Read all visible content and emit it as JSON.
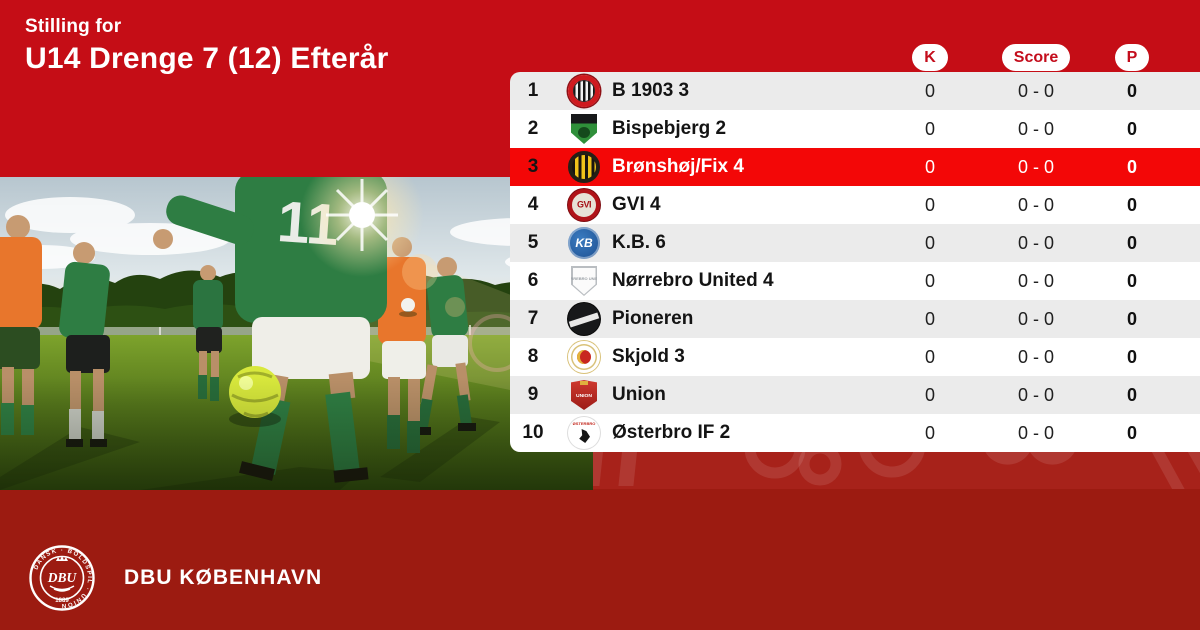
{
  "header": {
    "eyebrow": "Stilling for",
    "title": "U14 Drenge 7 (12) Efterår"
  },
  "table": {
    "columns": [
      {
        "key": "k",
        "label": "K"
      },
      {
        "key": "score",
        "label": "Score"
      },
      {
        "key": "p",
        "label": "P"
      }
    ],
    "rows": [
      {
        "pos": "1",
        "team": "B 1903 3",
        "crest": "b1903",
        "crest_text": "",
        "k": "0",
        "score": "0 - 0",
        "p": "0",
        "highlight": false
      },
      {
        "pos": "2",
        "team": "Bispebjerg 2",
        "crest": "bispebjerg",
        "crest_text": "",
        "k": "0",
        "score": "0 - 0",
        "p": "0",
        "highlight": false
      },
      {
        "pos": "3",
        "team": "Brønshøj/Fix 4",
        "crest": "bronshoj",
        "crest_text": "",
        "k": "0",
        "score": "0 - 0",
        "p": "0",
        "highlight": true
      },
      {
        "pos": "4",
        "team": "GVI 4",
        "crest": "gvi",
        "crest_text": "GVI",
        "k": "0",
        "score": "0 - 0",
        "p": "0",
        "highlight": false
      },
      {
        "pos": "5",
        "team": "K.B. 6",
        "crest": "kb",
        "crest_text": "KB",
        "k": "0",
        "score": "0 - 0",
        "p": "0",
        "highlight": false
      },
      {
        "pos": "6",
        "team": "Nørrebro United 4",
        "crest": "norrebro",
        "crest_text": "NØRREBRO UNITED",
        "k": "0",
        "score": "0 - 0",
        "p": "0",
        "highlight": false
      },
      {
        "pos": "7",
        "team": "Pioneren",
        "crest": "pioneren",
        "crest_text": "",
        "k": "0",
        "score": "0 - 0",
        "p": "0",
        "highlight": false
      },
      {
        "pos": "8",
        "team": "Skjold 3",
        "crest": "skjold",
        "crest_text": "",
        "k": "0",
        "score": "0 - 0",
        "p": "0",
        "highlight": false
      },
      {
        "pos": "9",
        "team": "Union",
        "crest": "union",
        "crest_text": "UNION",
        "k": "0",
        "score": "0 - 0",
        "p": "0",
        "highlight": false
      },
      {
        "pos": "10",
        "team": "Østerbro IF 2",
        "crest": "osterbro",
        "crest_text": "ØSTERBRO",
        "k": "0",
        "score": "0 - 0",
        "p": "0",
        "highlight": false
      }
    ]
  },
  "photo": {
    "jersey_number": "11"
  },
  "footer": {
    "brand": "DBU KØBENHAVN",
    "crest_center": "DBU",
    "crest_ring_text": "DANSK · BOLDSPIL · UNION",
    "crest_year": "1889"
  },
  "colors": {
    "background_red": "#C50D16",
    "band_red": "#A7221A",
    "footer_red": "#9C1B11",
    "highlight_red": "#F30707",
    "row_alt_gray": "#EBEBEB",
    "pill_text_red": "#C40D1C"
  }
}
